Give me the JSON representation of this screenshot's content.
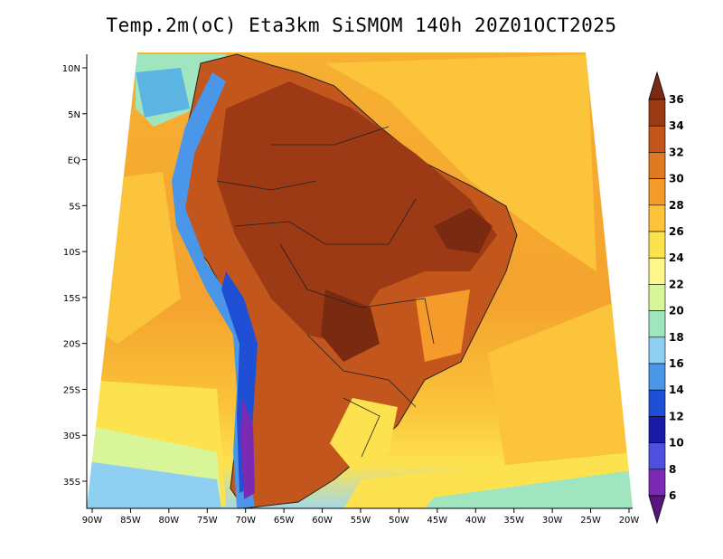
{
  "title": "Temp.2m(oC) Eta3km SiSMOM 140h 20Z01OCT2025",
  "map": {
    "lon_ticks": [
      "90W",
      "85W",
      "80W",
      "75W",
      "70W",
      "65W",
      "60W",
      "55W",
      "50W",
      "45W",
      "40W",
      "35W",
      "30W",
      "25W",
      "20W"
    ],
    "lat_ticks": [
      "10N",
      "5N",
      "EQ",
      "5S",
      "10S",
      "15S",
      "20S",
      "25S",
      "30S",
      "35S"
    ],
    "lon_range": [
      -91,
      -20
    ],
    "lat_range": [
      12,
      -38
    ]
  },
  "colorbar": {
    "labels": [
      "36",
      "34",
      "32",
      "30",
      "28",
      "26",
      "24",
      "22",
      "20",
      "18",
      "16",
      "14",
      "12",
      "10",
      "8",
      "6"
    ],
    "colors": [
      "#7a2a10",
      "#9b3a15",
      "#c2561c",
      "#e07a22",
      "#f59b2c",
      "#fbc43a",
      "#fde24f",
      "#fdf78a",
      "#d9f59a",
      "#9fe6c0",
      "#8fd0f2",
      "#4a96e8",
      "#1f4fd4",
      "#1a1aa6",
      "#4f4fe0",
      "#7b2ab3",
      "#5a1580"
    ]
  }
}
